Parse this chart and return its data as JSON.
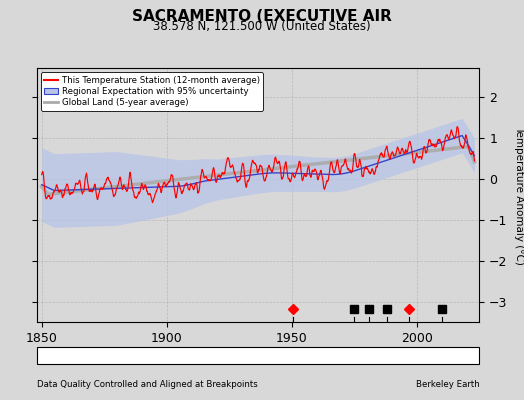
{
  "title": "SACRAMENTO (EXECUTIVE AIR",
  "subtitle": "38.578 N, 121.500 W (United States)",
  "ylabel": "Temperature Anomaly (°C)",
  "xlabel_note": "Data Quality Controlled and Aligned at Breakpoints",
  "credit": "Berkeley Earth",
  "xlim": [
    1848,
    2025
  ],
  "ylim": [
    -3.5,
    2.7
  ],
  "yticks": [
    -3,
    -2,
    -1,
    0,
    1,
    2
  ],
  "xticks": [
    1850,
    1900,
    1950,
    2000
  ],
  "bg_color": "#d8d8d8",
  "plot_bg_color": "#d8d8d8",
  "legend_labels": [
    "This Temperature Station (12-month average)",
    "Regional Expectation with 95% uncertainty",
    "Global Land (5-year average)"
  ],
  "red_diamonds_years": [
    1950.5,
    1997.0
  ],
  "black_squares_years": [
    1975.0,
    1981.0,
    1988.0,
    2010.0
  ],
  "seed": 42,
  "start_year": 1850,
  "end_year": 2023
}
